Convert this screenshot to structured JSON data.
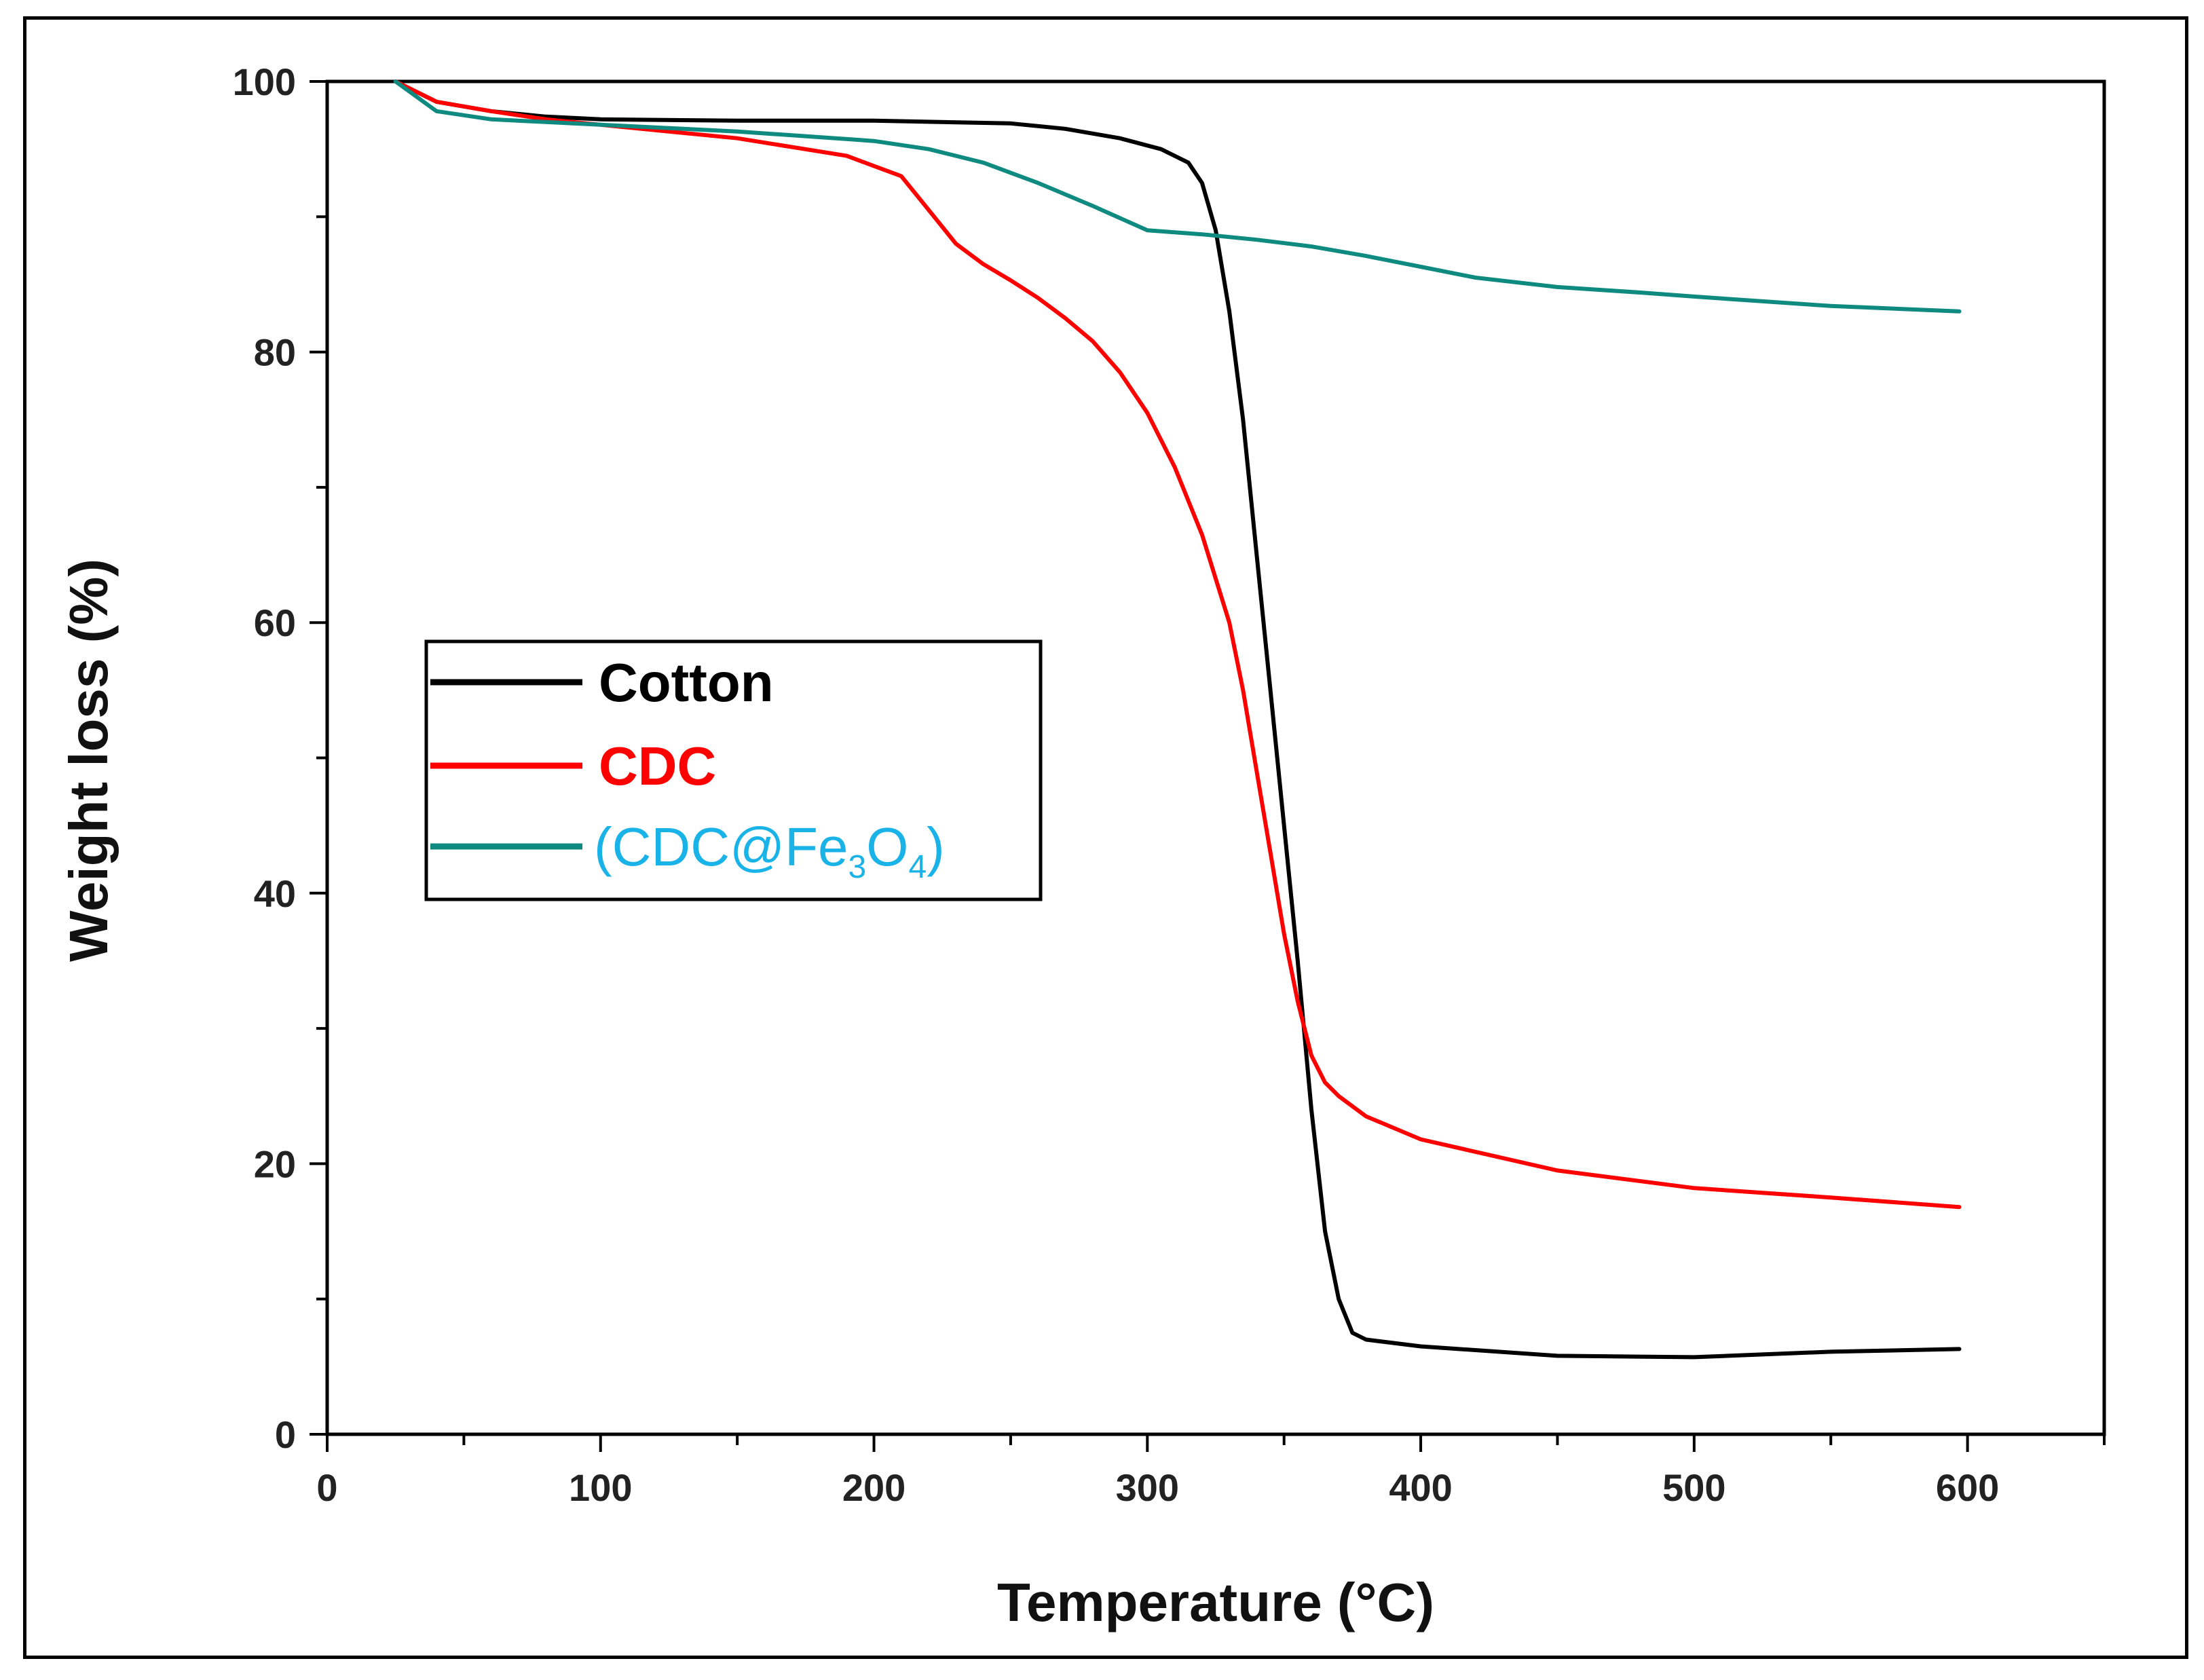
{
  "chart_data": {
    "type": "line",
    "title": "",
    "xlabel": "Temperature (°C)",
    "ylabel": "Weight loss (%)",
    "xlim": [
      0,
      650
    ],
    "ylim": [
      0,
      100
    ],
    "xticks": [
      0,
      100,
      200,
      300,
      400,
      500,
      600
    ],
    "yticks": [
      0,
      20,
      40,
      60,
      80,
      100
    ],
    "grid": false,
    "legend_position": "center-left",
    "series": [
      {
        "name": "Cotton",
        "label_main": "Cotton",
        "color": "#000000",
        "label_color": "#000000",
        "x": [
          25,
          40,
          60,
          80,
          100,
          150,
          200,
          250,
          270,
          290,
          305,
          315,
          320,
          325,
          330,
          335,
          340,
          345,
          350,
          355,
          360,
          365,
          370,
          375,
          380,
          400,
          450,
          500,
          550,
          597
        ],
        "y": [
          100,
          98.5,
          97.8,
          97.4,
          97.2,
          97.1,
          97.1,
          96.9,
          96.5,
          95.8,
          95,
          94,
          92.5,
          89,
          83,
          75,
          65,
          55,
          45,
          35,
          24,
          15,
          10,
          7.5,
          7,
          6.5,
          5.8,
          5.7,
          6.1,
          6.3
        ]
      },
      {
        "name": "CDC",
        "label_main": "CDC",
        "color": "#ff0000",
        "label_color": "#ff0000",
        "x": [
          25,
          40,
          60,
          80,
          100,
          150,
          190,
          210,
          220,
          230,
          240,
          250,
          260,
          270,
          280,
          290,
          300,
          310,
          320,
          330,
          335,
          340,
          345,
          350,
          355,
          360,
          365,
          370,
          380,
          400,
          450,
          500,
          550,
          597
        ],
        "y": [
          100,
          98.5,
          97.8,
          97.2,
          96.8,
          95.8,
          94.5,
          93,
          90.5,
          88,
          86.5,
          85.3,
          84,
          82.5,
          80.8,
          78.5,
          75.5,
          71.5,
          66.5,
          60,
          55,
          49,
          43,
          37,
          32,
          28,
          26,
          25,
          23.5,
          21.8,
          19.5,
          18.2,
          17.5,
          16.8
        ]
      },
      {
        "name": "(CDC@Fe3O4)",
        "label_main": "(CDC@Fe",
        "label_sub1": "3",
        "label_mid": "O",
        "label_sub2": "4",
        "label_end": ")",
        "color": "#0e8a80",
        "label_color": "#1ab3e8",
        "x": [
          25,
          40,
          60,
          80,
          100,
          150,
          200,
          220,
          240,
          260,
          280,
          300,
          320,
          340,
          360,
          380,
          400,
          420,
          450,
          480,
          500,
          550,
          597
        ],
        "y": [
          100,
          97.8,
          97.2,
          97,
          96.8,
          96.3,
          95.6,
          95,
          94,
          92.5,
          90.8,
          89,
          88.7,
          88.3,
          87.8,
          87.1,
          86.3,
          85.5,
          84.8,
          84.4,
          84.1,
          83.4,
          83
        ]
      }
    ]
  }
}
